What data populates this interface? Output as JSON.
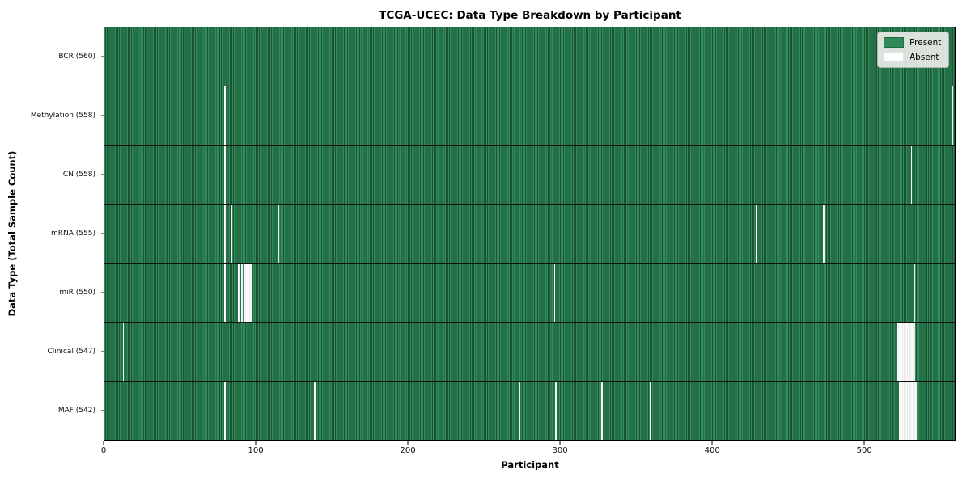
{
  "title": "TCGA-UCEC: Data Type Breakdown by Participant",
  "xlabel": "Participant",
  "ylabel": "Data Type (Total Sample Count)",
  "legend": {
    "present_label": "Present",
    "absent_label": "Absent"
  },
  "colors": {
    "present": "#2e8b57",
    "present_dark": "#1a5233",
    "absent": "#ffffff",
    "legend_bg": "#e9ede9",
    "row_divider": "#0d120d"
  },
  "chart_data": {
    "type": "heatmap",
    "title": "TCGA-UCEC: Data Type Breakdown by Participant",
    "xlabel": "Participant",
    "ylabel": "Data Type (Total Sample Count)",
    "x_range": [
      0,
      560
    ],
    "x_ticks": [
      0,
      100,
      200,
      300,
      400,
      500
    ],
    "legend_entries": [
      "Present",
      "Absent"
    ],
    "legend_position": "upper right",
    "grid": false,
    "rows": [
      {
        "data_type": "BCR",
        "label": "BCR (560)",
        "present_count": 560,
        "absent_count": 0,
        "absent_participants": []
      },
      {
        "data_type": "Methylation",
        "label": "Methylation (558)",
        "present_count": 558,
        "absent_count": 2,
        "absent_participants": [
          79,
          558
        ]
      },
      {
        "data_type": "CN",
        "label": "CN (558)",
        "present_count": 558,
        "absent_count": 2,
        "absent_participants": [
          79,
          531
        ]
      },
      {
        "data_type": "mRNA",
        "label": "mRNA (555)",
        "present_count": 555,
        "absent_count": 5,
        "absent_participants": [
          79,
          83,
          114,
          429,
          473
        ]
      },
      {
        "data_type": "miR",
        "label": "miR (550)",
        "present_count": 550,
        "absent_count": 10,
        "absent_participants": [
          79,
          88,
          90,
          92,
          93,
          94,
          95,
          96,
          296,
          533
        ]
      },
      {
        "data_type": "Clinical",
        "label": "Clinical (547)",
        "present_count": 547,
        "absent_count": 13,
        "absent_participants": [
          12,
          522,
          523,
          524,
          525,
          526,
          527,
          528,
          529,
          530,
          531,
          532,
          533
        ]
      },
      {
        "data_type": "MAF",
        "label": "MAF (542)",
        "present_count": 542,
        "absent_count": 18,
        "absent_participants": [
          79,
          138,
          273,
          297,
          327,
          359,
          523,
          524,
          525,
          526,
          527,
          528,
          529,
          530,
          531,
          532,
          533,
          534
        ]
      }
    ]
  }
}
